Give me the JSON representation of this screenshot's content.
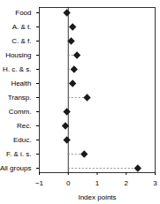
{
  "chart_data": {
    "type": "dot",
    "orientation": "horizontal",
    "categories": [
      "Food",
      "A. & t.",
      "C. & f.",
      "Housing",
      "H. c. & s.",
      "Health",
      "Transp.",
      "Comm.",
      "Rec.",
      "Educ.",
      "F. & i. s.",
      "All groups"
    ],
    "values": [
      -0.05,
      0.15,
      0.1,
      0.3,
      0.2,
      0.15,
      0.65,
      -0.05,
      -0.1,
      -0.05,
      0.55,
      2.4
    ],
    "color": "#1a1a1a",
    "marker": "diamond",
    "line_style": "dashed",
    "xlim": [
      -1,
      3
    ],
    "xticks": [
      -1,
      0,
      1,
      2,
      3
    ],
    "xlabel": "Index points"
  }
}
